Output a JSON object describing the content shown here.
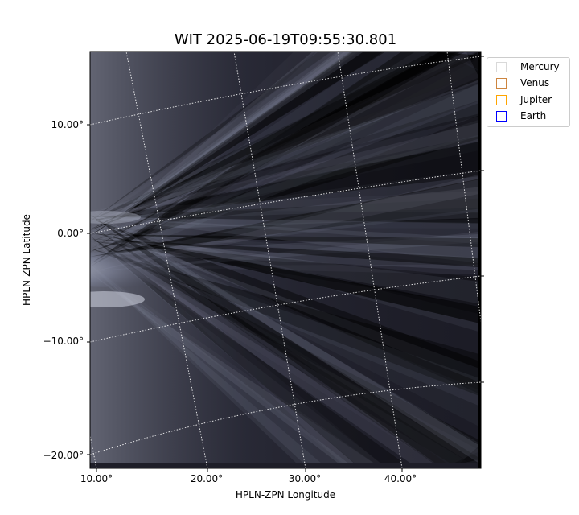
{
  "chart_data": {
    "type": "image",
    "title": "WIT 2025-06-19T09:55:30.801",
    "xlabel": "HPLN-ZPN Longitude",
    "ylabel": "HPLN-ZPN Latitude",
    "x_ticks": [
      "10.00°",
      "20.00°",
      "30.00°",
      "40.00°"
    ],
    "y_ticks": [
      "10.00°",
      "0.00°",
      "−10.00°",
      "−20.00°"
    ],
    "grid": true,
    "colormap": "bone",
    "legend_placement": "outside-top-right",
    "legend": [
      {
        "name": "Mercury",
        "color": "#d9d9d9"
      },
      {
        "name": "Venus",
        "color": "#cd853f"
      },
      {
        "name": "Jupiter",
        "color": "#ffa500"
      },
      {
        "name": "Earth",
        "color": "#0000ff"
      }
    ]
  }
}
